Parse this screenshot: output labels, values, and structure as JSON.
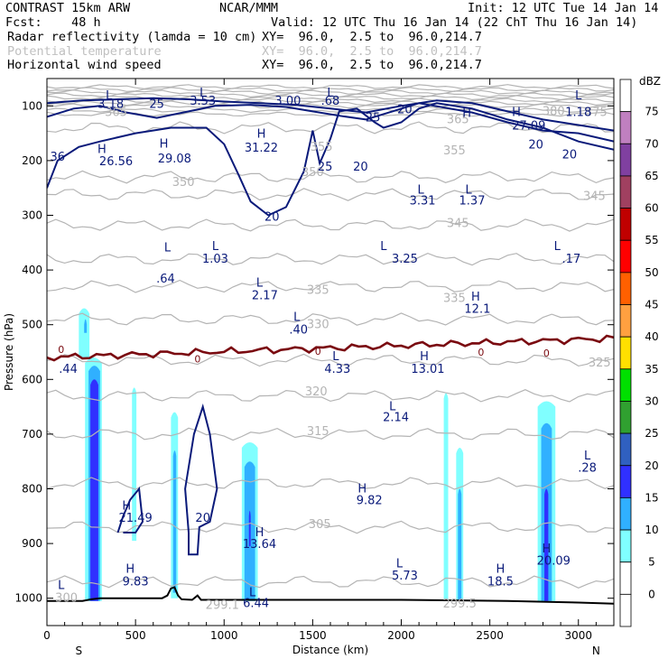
{
  "header": {
    "left_title": "CONTRAST 15km ARW",
    "left_fcst": "Fcst:    48 h",
    "center_title": "NCAR/MMM",
    "init_line": "Init: 12 UTC Tue 14 Jan 14",
    "valid_line": "Valid: 12 UTC Thu 16 Jan 14 (22 ChT Thu 16 Jan 14)",
    "fields": [
      {
        "name": "Radar reflectivity (lamda = 10 cm)",
        "xy": "XY=  96.0,  2.5 to  96.0,214.7",
        "color": "#000000"
      },
      {
        "name": "Potential temperature",
        "xy": "XY=  96.0,  2.5 to  96.0,214.7",
        "color": "#c0c0c0"
      },
      {
        "name": "Horizontal wind speed",
        "xy": "XY=  96.0,  2.5 to  96.0,214.7",
        "color": "#000080"
      }
    ]
  },
  "chart_data": {
    "type": "cross-section",
    "xlabel": "Distance (km)",
    "ylabel": "Pressure (hPa)",
    "xlim": [
      0,
      3200
    ],
    "ylim": [
      1050,
      50
    ],
    "x_ticks": [
      0,
      500,
      1000,
      1500,
      2000,
      2500,
      3000
    ],
    "y_ticks": [
      100,
      200,
      300,
      400,
      500,
      600,
      700,
      800,
      900,
      1000
    ],
    "endpoint_labels": {
      "left": "S",
      "right": "N"
    },
    "colorbar": {
      "title": "dBZ",
      "levels": [
        "0",
        "5",
        "10",
        "15",
        "20",
        "25",
        "30",
        "35",
        "40",
        "45",
        "50",
        "55",
        "60",
        "65",
        "70",
        "75"
      ],
      "colors": [
        "#ffffff",
        "#ffffff",
        "#80ffff",
        "#30b0ff",
        "#3030ff",
        "#3060c0",
        "#30a030",
        "#00e000",
        "#ffe000",
        "#ffa040",
        "#ff6000",
        "#ff0000",
        "#c00000",
        "#a04060",
        "#8040a0",
        "#c080c0",
        "#ffffff"
      ]
    },
    "wind_labels": [
      {
        "x": 360,
        "p": 95,
        "text": "3.18"
      },
      {
        "x": 620,
        "p": 95,
        "text": "25"
      },
      {
        "x": 880,
        "p": 90,
        "text": "3.53"
      },
      {
        "x": 1360,
        "p": 90,
        "text": "3.00"
      },
      {
        "x": 1600,
        "p": 90,
        "text": ".68"
      },
      {
        "x": 2020,
        "p": 105,
        "text": "20"
      },
      {
        "x": 1840,
        "p": 120,
        "text": "25"
      },
      {
        "x": 3000,
        "p": 110,
        "text": "1.18"
      },
      {
        "x": 2720,
        "p": 135,
        "text": "27.09"
      },
      {
        "x": 390,
        "p": 200,
        "text": "26.56"
      },
      {
        "x": 720,
        "p": 195,
        "text": "29.08"
      },
      {
        "x": 1210,
        "p": 175,
        "text": "31.22"
      },
      {
        "x": 60,
        "p": 192,
        "text": "36"
      },
      {
        "x": 2760,
        "p": 170,
        "text": "20"
      },
      {
        "x": 2950,
        "p": 188,
        "text": "20"
      },
      {
        "x": 1570,
        "p": 210,
        "text": "25"
      },
      {
        "x": 1770,
        "p": 210,
        "text": "20"
      },
      {
        "x": 1270,
        "p": 302,
        "text": "20"
      },
      {
        "x": 2120,
        "p": 272,
        "text": "3.31"
      },
      {
        "x": 2400,
        "p": 272,
        "text": "1.37"
      },
      {
        "x": 950,
        "p": 378,
        "text": "1.03"
      },
      {
        "x": 2020,
        "p": 378,
        "text": "3.25"
      },
      {
        "x": 2960,
        "p": 378,
        "text": ".17"
      },
      {
        "x": 670,
        "p": 415,
        "text": ".64"
      },
      {
        "x": 1230,
        "p": 445,
        "text": "2.17"
      },
      {
        "x": 2430,
        "p": 470,
        "text": "12.1"
      },
      {
        "x": 1420,
        "p": 508,
        "text": ".40"
      },
      {
        "x": 120,
        "p": 580,
        "text": ".44"
      },
      {
        "x": 1640,
        "p": 580,
        "text": "4.33"
      },
      {
        "x": 2150,
        "p": 580,
        "text": "13.01"
      },
      {
        "x": 1970,
        "p": 668,
        "text": "2.14"
      },
      {
        "x": 3050,
        "p": 760,
        "text": ".28"
      },
      {
        "x": 1820,
        "p": 820,
        "text": "9.82"
      },
      {
        "x": 500,
        "p": 852,
        "text": "21.49"
      },
      {
        "x": 880,
        "p": 852,
        "text": "20"
      },
      {
        "x": 1200,
        "p": 900,
        "text": "13.64"
      },
      {
        "x": 2860,
        "p": 930,
        "text": "20.09"
      },
      {
        "x": 500,
        "p": 968,
        "text": "9.83"
      },
      {
        "x": 2020,
        "p": 958,
        "text": "5.73"
      },
      {
        "x": 2560,
        "p": 968,
        "text": "18.5"
      },
      {
        "x": 1180,
        "p": 1008,
        "text": "6.44"
      }
    ],
    "wind_extrema_markers": [
      {
        "x": 350,
        "p": 80,
        "text": "L"
      },
      {
        "x": 880,
        "p": 75,
        "text": "L"
      },
      {
        "x": 1600,
        "p": 75,
        "text": "L"
      },
      {
        "x": 3000,
        "p": 80,
        "text": "L"
      },
      {
        "x": 2370,
        "p": 112,
        "text": "H"
      },
      {
        "x": 2650,
        "p": 110,
        "text": "H"
      },
      {
        "x": 310,
        "p": 178,
        "text": "H"
      },
      {
        "x": 660,
        "p": 168,
        "text": "H"
      },
      {
        "x": 1210,
        "p": 150,
        "text": "H"
      },
      {
        "x": 2110,
        "p": 252,
        "text": "L"
      },
      {
        "x": 2380,
        "p": 252,
        "text": "L"
      },
      {
        "x": 680,
        "p": 358,
        "text": "L"
      },
      {
        "x": 950,
        "p": 355,
        "text": "L"
      },
      {
        "x": 1900,
        "p": 355,
        "text": "L"
      },
      {
        "x": 2880,
        "p": 355,
        "text": "L"
      },
      {
        "x": 1200,
        "p": 422,
        "text": "L"
      },
      {
        "x": 2420,
        "p": 448,
        "text": "H"
      },
      {
        "x": 1410,
        "p": 485,
        "text": "L"
      },
      {
        "x": 1630,
        "p": 557,
        "text": "L"
      },
      {
        "x": 2130,
        "p": 557,
        "text": "H"
      },
      {
        "x": 1950,
        "p": 648,
        "text": "L"
      },
      {
        "x": 3050,
        "p": 738,
        "text": "L"
      },
      {
        "x": 1780,
        "p": 798,
        "text": "H"
      },
      {
        "x": 450,
        "p": 830,
        "text": "H"
      },
      {
        "x": 1200,
        "p": 878,
        "text": "H"
      },
      {
        "x": 2820,
        "p": 908,
        "text": "H"
      },
      {
        "x": 470,
        "p": 945,
        "text": "H"
      },
      {
        "x": 1990,
        "p": 935,
        "text": "L"
      },
      {
        "x": 2560,
        "p": 945,
        "text": "H"
      },
      {
        "x": 1160,
        "p": 988,
        "text": "L"
      },
      {
        "x": 80,
        "p": 975,
        "text": "L"
      }
    ],
    "theta_labels": [
      {
        "x": 390,
        "p": 112,
        "text": "365"
      },
      {
        "x": 2320,
        "p": 125,
        "text": "365"
      },
      {
        "x": 2860,
        "p": 110,
        "text": "380"
      },
      {
        "x": 3100,
        "p": 112,
        "text": "375"
      },
      {
        "x": 2300,
        "p": 182,
        "text": "355"
      },
      {
        "x": 1550,
        "p": 175,
        "text": "355"
      },
      {
        "x": 1500,
        "p": 222,
        "text": "350"
      },
      {
        "x": 770,
        "p": 240,
        "text": "350"
      },
      {
        "x": 3090,
        "p": 265,
        "text": "345"
      },
      {
        "x": 2320,
        "p": 315,
        "text": "345"
      },
      {
        "x": 1530,
        "p": 437,
        "text": "335"
      },
      {
        "x": 2300,
        "p": 452,
        "text": "335"
      },
      {
        "x": 1530,
        "p": 500,
        "text": "330"
      },
      {
        "x": 3120,
        "p": 570,
        "text": "325"
      },
      {
        "x": 1520,
        "p": 623,
        "text": "320"
      },
      {
        "x": 1530,
        "p": 695,
        "text": "315"
      },
      {
        "x": 1540,
        "p": 865,
        "text": "305"
      },
      {
        "x": 110,
        "p": 1000,
        "text": "300"
      },
      {
        "x": 990,
        "p": 1013,
        "text": "299.1"
      },
      {
        "x": 2330,
        "p": 1010,
        "text": "299.5"
      }
    ],
    "zero_labels": [
      {
        "x": 80,
        "p": 545,
        "text": "0"
      },
      {
        "x": 850,
        "p": 562,
        "text": "0"
      },
      {
        "x": 1530,
        "p": 548,
        "text": "0"
      },
      {
        "x": 2450,
        "p": 550,
        "text": "0"
      },
      {
        "x": 2820,
        "p": 552,
        "text": "0"
      }
    ]
  }
}
